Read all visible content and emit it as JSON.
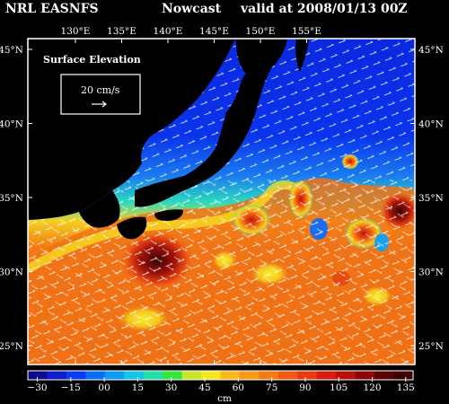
{
  "header": {
    "model": "NRL EASNFS",
    "product": "Nowcast",
    "valid": "valid at 2008/01/13 00Z"
  },
  "legend": {
    "title": "Surface Elevation",
    "ref_speed": "20 cm/s"
  },
  "lon_labels": [
    "130°E",
    "135°E",
    "140°E",
    "145°E",
    "150°E",
    "155°E"
  ],
  "lat_labels": [
    "45°N",
    "40°N",
    "35°N",
    "30°N",
    "25°N"
  ],
  "colorbar": {
    "unit": "cm",
    "ticks": [
      "−30",
      "−15",
      "00",
      "15",
      "30",
      "45",
      "60",
      "75",
      "90",
      "105",
      "120",
      "135"
    ],
    "colors": [
      "#0a0a8c",
      "#0d1ec8",
      "#0a3cf0",
      "#0a6cf5",
      "#0b9cf6",
      "#12c6e8",
      "#22e0a8",
      "#34e63a",
      "#c8e628",
      "#f6e61c",
      "#f8b81a",
      "#f89a18",
      "#f47a14",
      "#ee5a12",
      "#e63a10",
      "#d81a10",
      "#b81008",
      "#8c0606",
      "#5a0404",
      "#3c0202"
    ]
  },
  "map": {
    "land_color": "#000000",
    "ocean_colors": {
      "cold": "#0a2ce6",
      "mid": "#2ab8f0",
      "warm": "#f5d020",
      "hot": "#f06010",
      "peak": "#4a0a0a"
    }
  }
}
